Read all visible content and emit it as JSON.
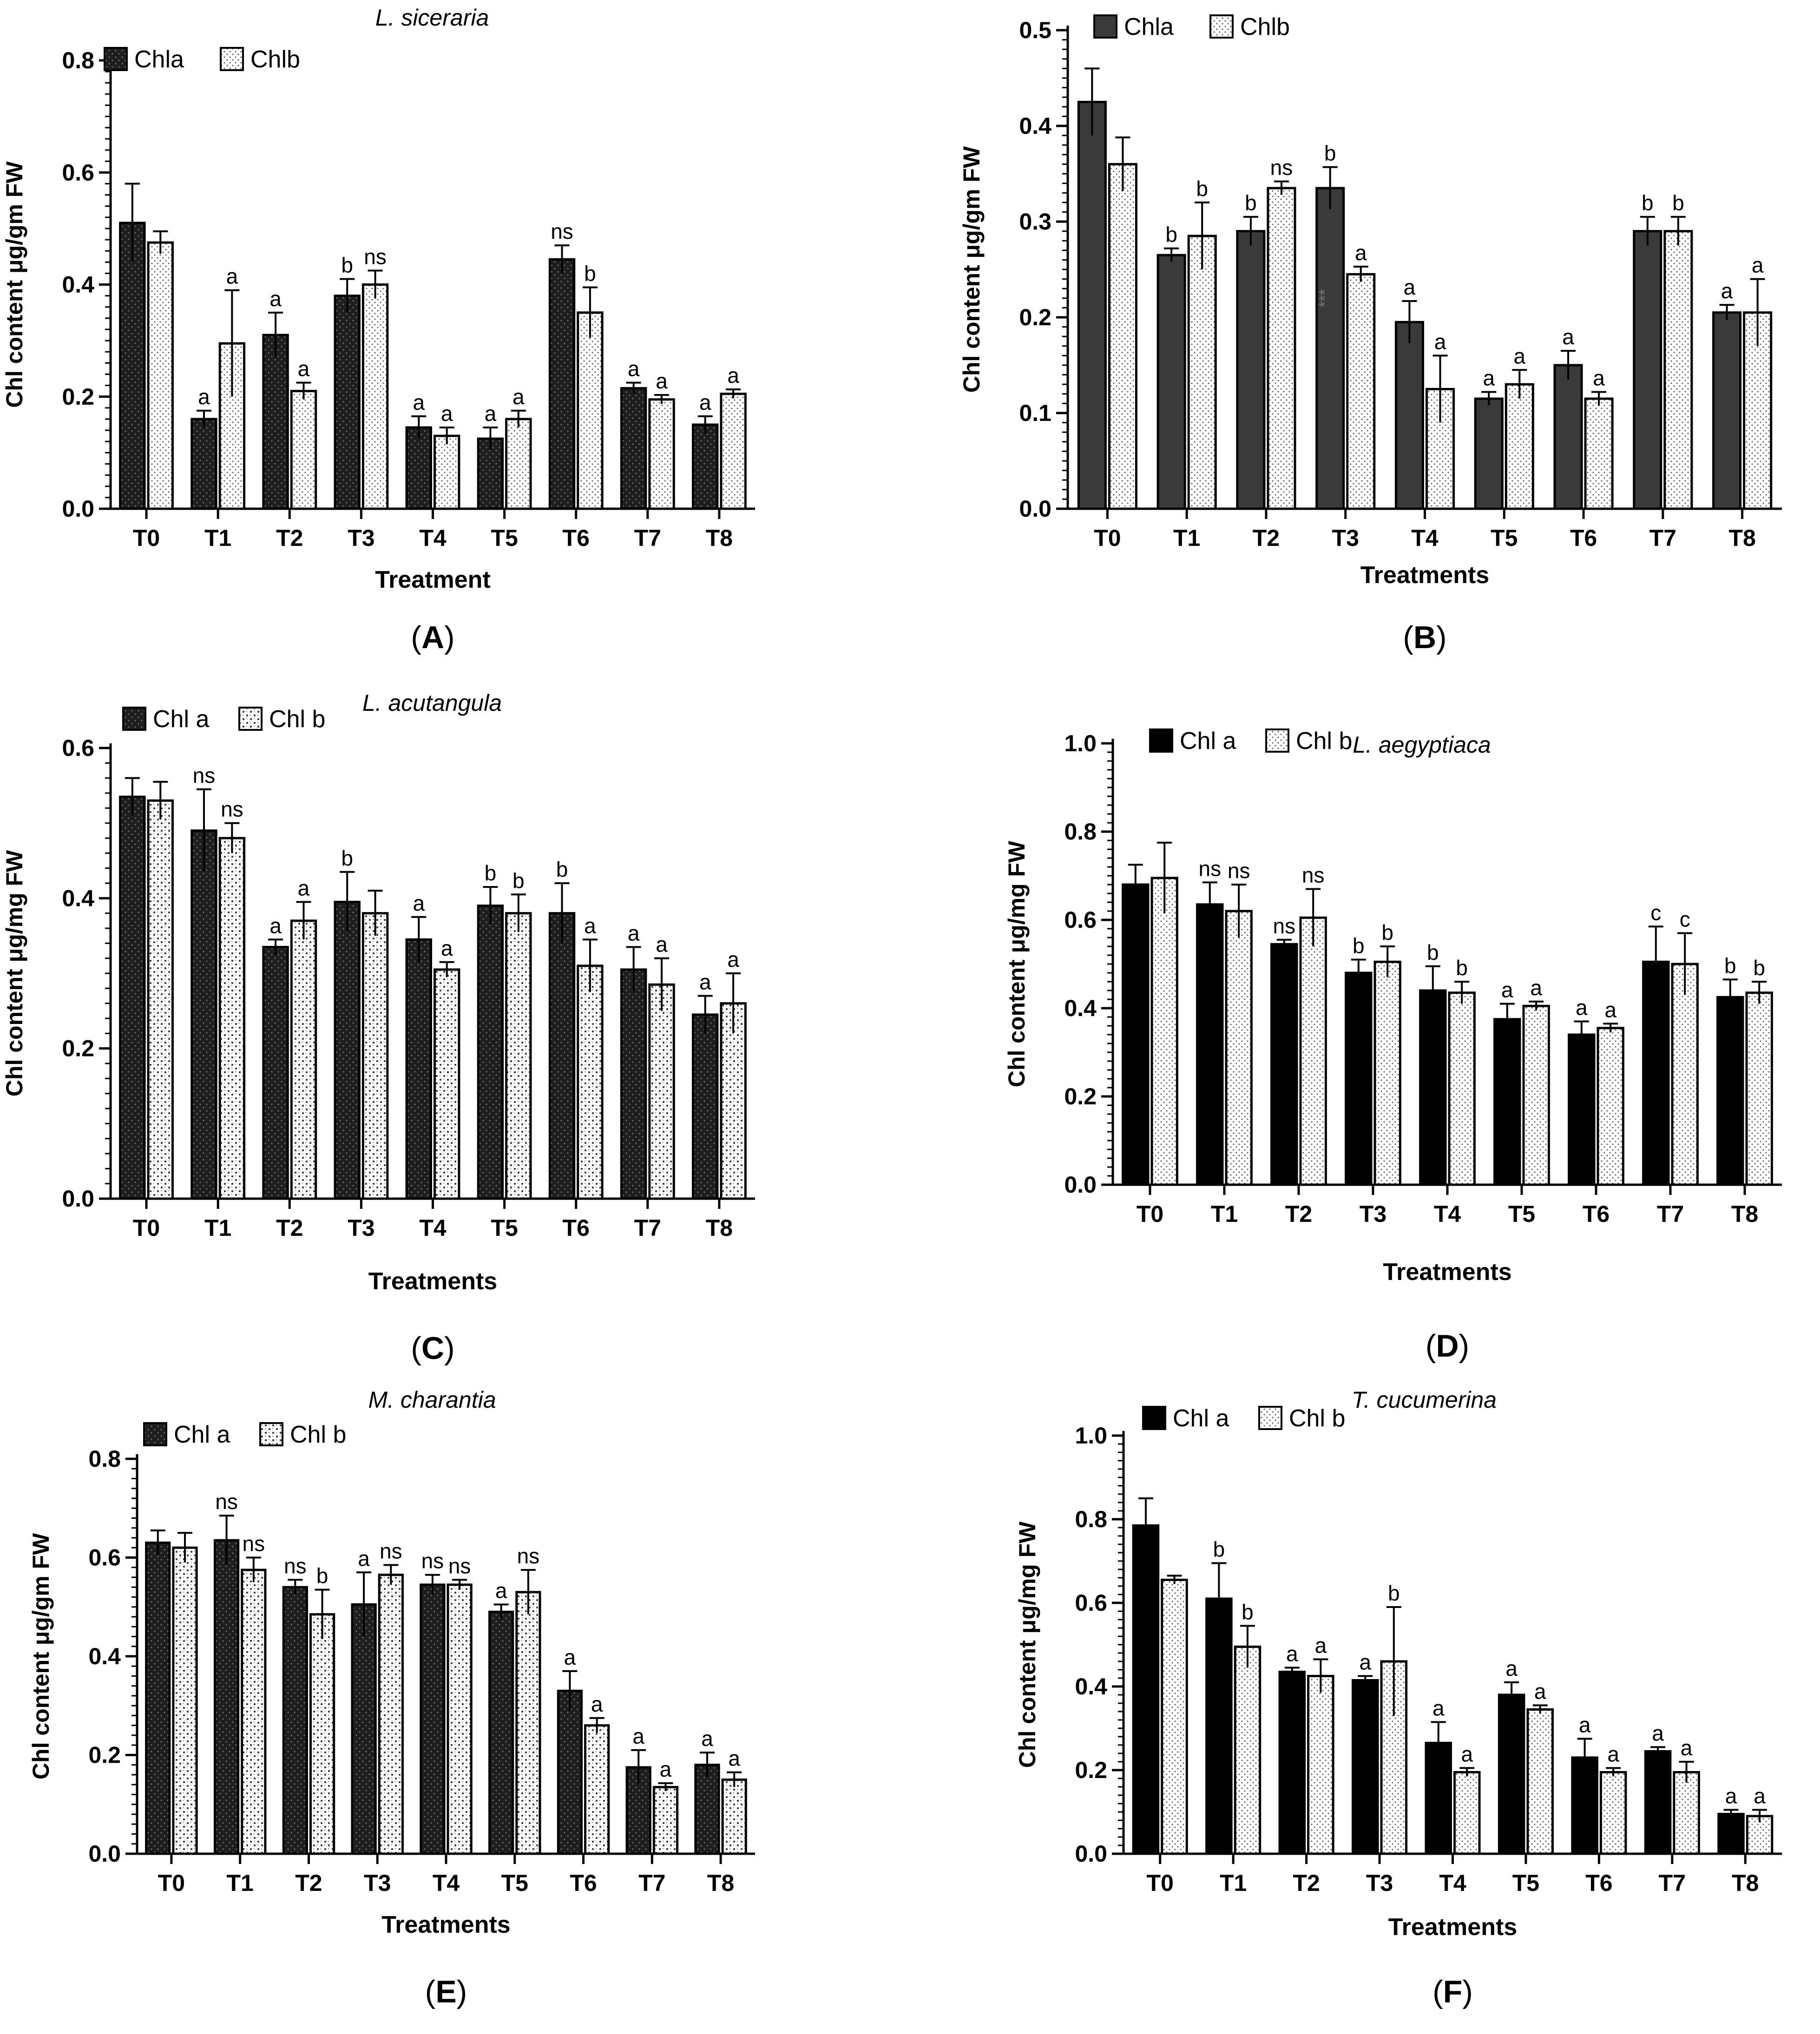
{
  "figure": {
    "panel_letters": [
      "A",
      "B",
      "C",
      "D",
      "E",
      "F"
    ],
    "colors": {
      "chla_fill": "#1e1e1e",
      "chla_fill_b": "#3a3a3a",
      "chlb_fill": "#ffffff",
      "axis": "#000000",
      "dots": "#555555"
    }
  },
  "chart_data": [
    {
      "panel": "A",
      "type": "bar",
      "title": "L. siceraria",
      "xlabel": "Treatment",
      "ylabel": "Chl content μg/gm FW",
      "ylim": [
        0,
        0.8
      ],
      "yticks": [
        0.0,
        0.2,
        0.4,
        0.6,
        0.8
      ],
      "ytick_labels": [
        "0.0",
        "0.2",
        "0.4",
        "0.6",
        "0.8"
      ],
      "legend_position": "top-left",
      "categories": [
        "T0",
        "T1",
        "T2",
        "T3",
        "T4",
        "T5",
        "T6",
        "T7",
        "T8"
      ],
      "series": [
        {
          "name": "Chla",
          "style": "dark-dotted",
          "values": [
            0.51,
            0.16,
            0.31,
            0.38,
            0.145,
            0.125,
            0.445,
            0.215,
            0.15
          ],
          "errors": [
            0.07,
            0.015,
            0.04,
            0.03,
            0.02,
            0.02,
            0.025,
            0.01,
            0.015
          ],
          "labels": [
            "",
            "a",
            "a",
            "b",
            "a",
            "a",
            "ns",
            "a",
            "a"
          ]
        },
        {
          "name": "Chlb",
          "style": "light-dotted",
          "values": [
            0.475,
            0.295,
            0.21,
            0.4,
            0.13,
            0.16,
            0.35,
            0.195,
            0.205
          ],
          "errors": [
            0.02,
            0.095,
            0.015,
            0.025,
            0.015,
            0.015,
            0.045,
            0.008,
            0.008
          ],
          "labels": [
            "",
            "a",
            "a",
            "ns",
            "a",
            "a",
            "b",
            "a",
            "a"
          ]
        }
      ]
    },
    {
      "panel": "B",
      "type": "bar",
      "title": "",
      "xlabel": "Treatments",
      "ylabel": "Chl content μg/gm FW",
      "ylim": [
        0,
        0.5
      ],
      "yticks": [
        0.0,
        0.1,
        0.2,
        0.3,
        0.4,
        0.5
      ],
      "ytick_labels": [
        "0.0",
        "0.1",
        "0.2",
        "0.3",
        "0.4",
        "0.5"
      ],
      "legend_position": "top-left",
      "annotation": "***",
      "categories": [
        "T0",
        "T1",
        "T2",
        "T3",
        "T4",
        "T5",
        "T6",
        "T7",
        "T8"
      ],
      "series": [
        {
          "name": "Chla",
          "style": "dark-solid",
          "values": [
            0.425,
            0.265,
            0.29,
            0.335,
            0.195,
            0.115,
            0.15,
            0.29,
            0.205
          ],
          "errors": [
            0.035,
            0.007,
            0.015,
            0.022,
            0.022,
            0.007,
            0.015,
            0.015,
            0.008
          ],
          "labels": [
            "",
            "b",
            "b",
            "b",
            "a",
            "a",
            "a",
            "b",
            "a"
          ]
        },
        {
          "name": "Chlb",
          "style": "light-dotted",
          "values": [
            0.36,
            0.285,
            0.335,
            0.245,
            0.125,
            0.13,
            0.115,
            0.29,
            0.205
          ],
          "errors": [
            0.028,
            0.035,
            0.007,
            0.008,
            0.035,
            0.015,
            0.007,
            0.015,
            0.035
          ],
          "labels": [
            "",
            "b",
            "ns",
            "a",
            "a",
            "a",
            "a",
            "b",
            "a"
          ]
        }
      ]
    },
    {
      "panel": "C",
      "type": "bar",
      "title": "L. acutangula",
      "xlabel": "Treatments",
      "ylabel": "Chl content μg/mg FW",
      "ylim": [
        0,
        0.6
      ],
      "yticks": [
        0.0,
        0.2,
        0.4,
        0.6
      ],
      "ytick_labels": [
        "0.0",
        "0.2",
        "0.4",
        "0.6"
      ],
      "legend_position": "top-left",
      "categories": [
        "T0",
        "T1",
        "T2",
        "T3",
        "T4",
        "T5",
        "T6",
        "T7",
        "T8"
      ],
      "series": [
        {
          "name": "Chl a",
          "style": "dark-dotted",
          "values": [
            0.535,
            0.49,
            0.335,
            0.395,
            0.345,
            0.39,
            0.38,
            0.305,
            0.245
          ],
          "errors": [
            0.025,
            0.055,
            0.01,
            0.04,
            0.03,
            0.025,
            0.04,
            0.03,
            0.025
          ],
          "labels": [
            "",
            "ns",
            "a",
            "b",
            "a",
            "b",
            "b",
            "a",
            "a"
          ]
        },
        {
          "name": "Chl b",
          "style": "light-crosshatch",
          "values": [
            0.53,
            0.48,
            0.37,
            0.38,
            0.305,
            0.38,
            0.31,
            0.285,
            0.26
          ],
          "errors": [
            0.025,
            0.02,
            0.025,
            0.03,
            0.01,
            0.025,
            0.035,
            0.035,
            0.04
          ],
          "labels": [
            "",
            "ns",
            "a",
            "",
            "a",
            "b",
            "a",
            "a",
            "a"
          ]
        }
      ]
    },
    {
      "panel": "D",
      "type": "bar",
      "title": "L. aegyptiaca",
      "xlabel": "Treatments",
      "ylabel": "Chl content μg/mg FW",
      "ylim": [
        0,
        1.0
      ],
      "yticks": [
        0.0,
        0.2,
        0.4,
        0.6,
        0.8,
        1.0
      ],
      "ytick_labels": [
        "0.0",
        "0.2",
        "0.4",
        "0.6",
        "0.8",
        "1.0"
      ],
      "legend_position": "top-left",
      "categories": [
        "T0",
        "T1",
        "T2",
        "T3",
        "T4",
        "T5",
        "T6",
        "T7",
        "T8"
      ],
      "series": [
        {
          "name": "Chl a",
          "style": "black-solid",
          "values": [
            0.68,
            0.635,
            0.545,
            0.48,
            0.44,
            0.375,
            0.34,
            0.505,
            0.425
          ],
          "errors": [
            0.045,
            0.05,
            0.01,
            0.03,
            0.055,
            0.035,
            0.03,
            0.08,
            0.04
          ],
          "labels": [
            "",
            "ns",
            "ns",
            "b",
            "b",
            "a",
            "a",
            "c",
            "b"
          ]
        },
        {
          "name": "Chl b",
          "style": "light-dotted",
          "values": [
            0.695,
            0.62,
            0.605,
            0.505,
            0.435,
            0.405,
            0.355,
            0.5,
            0.435
          ],
          "errors": [
            0.08,
            0.06,
            0.065,
            0.035,
            0.025,
            0.01,
            0.01,
            0.07,
            0.025
          ],
          "labels": [
            "",
            "ns",
            "ns",
            "b",
            "b",
            "a",
            "a",
            "c",
            "b"
          ]
        }
      ]
    },
    {
      "panel": "E",
      "type": "bar",
      "title": "M. charantia",
      "xlabel": "Treatments",
      "ylabel": "Chl content μg/gm FW",
      "ylim": [
        0,
        0.8
      ],
      "yticks": [
        0.0,
        0.2,
        0.4,
        0.6,
        0.8
      ],
      "ytick_labels": [
        "0.0",
        "0.2",
        "0.4",
        "0.6",
        "0.8"
      ],
      "legend_position": "top-left",
      "categories": [
        "T0",
        "T1",
        "T2",
        "T3",
        "T4",
        "T5",
        "T6",
        "T7",
        "T8"
      ],
      "series": [
        {
          "name": "Chl a",
          "style": "dark-dotted",
          "values": [
            0.63,
            0.635,
            0.54,
            0.505,
            0.545,
            0.49,
            0.33,
            0.175,
            0.18
          ],
          "errors": [
            0.025,
            0.05,
            0.015,
            0.065,
            0.02,
            0.015,
            0.04,
            0.035,
            0.025
          ],
          "labels": [
            "",
            "ns",
            "ns",
            "a",
            "ns",
            "a",
            "a",
            "a",
            "a"
          ]
        },
        {
          "name": "Chl b",
          "style": "light-crosshatch",
          "values": [
            0.62,
            0.575,
            0.485,
            0.565,
            0.545,
            0.53,
            0.26,
            0.135,
            0.15
          ],
          "errors": [
            0.03,
            0.025,
            0.05,
            0.02,
            0.01,
            0.045,
            0.015,
            0.008,
            0.015
          ],
          "labels": [
            "",
            "ns",
            "b",
            "ns",
            "ns",
            "ns",
            "a",
            "a",
            "a"
          ]
        }
      ]
    },
    {
      "panel": "F",
      "type": "bar",
      "title": "T. cucumerina",
      "xlabel": "Treatments",
      "ylabel": "Chl content μg/mg FW",
      "ylim": [
        0,
        1.0
      ],
      "yticks": [
        0.0,
        0.2,
        0.4,
        0.6,
        0.8,
        1.0
      ],
      "ytick_labels": [
        "0.0",
        "0.2",
        "0.4",
        "0.6",
        "0.8",
        "1.0"
      ],
      "legend_position": "top-left",
      "categories": [
        "T0",
        "T1",
        "T2",
        "T3",
        "T4",
        "T5",
        "T6",
        "T7",
        "T8"
      ],
      "series": [
        {
          "name": "Chl a",
          "style": "black-solid",
          "values": [
            0.785,
            0.61,
            0.435,
            0.415,
            0.265,
            0.38,
            0.23,
            0.245,
            0.095
          ],
          "errors": [
            0.065,
            0.085,
            0.01,
            0.01,
            0.05,
            0.03,
            0.045,
            0.01,
            0.01
          ],
          "labels": [
            "",
            "b",
            "a",
            "a",
            "a",
            "a",
            "a",
            "a",
            "a"
          ]
        },
        {
          "name": "Chl b",
          "style": "light-dotted",
          "values": [
            0.655,
            0.495,
            0.425,
            0.46,
            0.195,
            0.345,
            0.195,
            0.195,
            0.09
          ],
          "errors": [
            0.01,
            0.05,
            0.04,
            0.13,
            0.01,
            0.01,
            0.01,
            0.025,
            0.015
          ],
          "labels": [
            "",
            "b",
            "a",
            "b",
            "a",
            "a",
            "a",
            "a",
            "a"
          ]
        }
      ]
    }
  ]
}
